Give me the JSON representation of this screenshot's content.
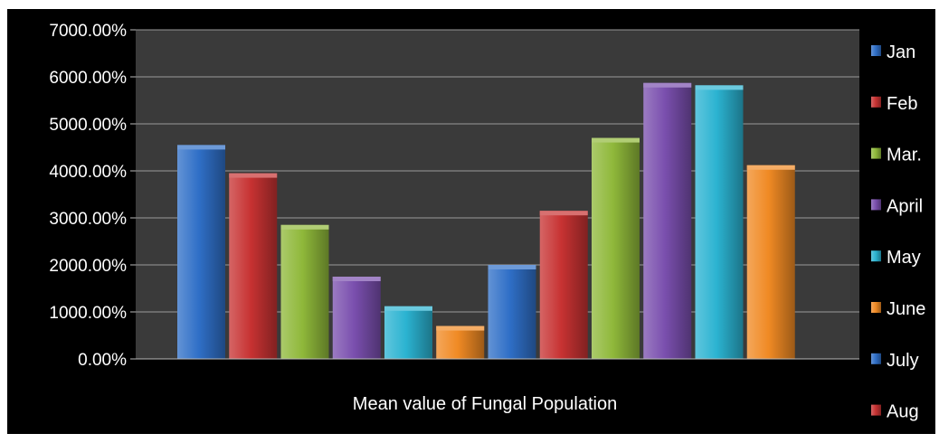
{
  "chart_data": {
    "type": "bar",
    "categories": [
      "Mean value of Fungal Population"
    ],
    "series": [
      {
        "name": "Jan",
        "values": [
          4550
        ],
        "color": "#2f6fc7"
      },
      {
        "name": "Feb",
        "values": [
          3950
        ],
        "color": "#c73232"
      },
      {
        "name": "Mar.",
        "values": [
          2850
        ],
        "color": "#8fb83a"
      },
      {
        "name": "April",
        "values": [
          1750
        ],
        "color": "#7a4fae"
      },
      {
        "name": "May",
        "values": [
          1120
        ],
        "color": "#2bb3d1"
      },
      {
        "name": "June",
        "values": [
          700
        ],
        "color": "#f08a24"
      },
      {
        "name": "July",
        "values": [
          2000
        ],
        "color": "#2f6fc7"
      },
      {
        "name": "Aug",
        "values": [
          3150
        ],
        "color": "#c73232"
      },
      {
        "name": "",
        "values": [
          4700
        ],
        "color": "#8fb83a"
      },
      {
        "name": "",
        "values": [
          5870
        ],
        "color": "#7a4fae"
      },
      {
        "name": "",
        "values": [
          5820
        ],
        "color": "#2bb3d1"
      },
      {
        "name": "",
        "values": [
          4120
        ],
        "color": "#f08a24"
      }
    ],
    "ylim": [
      0,
      7000
    ],
    "yticks": [
      "0.00%",
      "1000.00%",
      "2000.00%",
      "3000.00%",
      "4000.00%",
      "5000.00%",
      "6000.00%",
      "7000.00%"
    ],
    "xlabel": "Mean value of Fungal Population",
    "ylabel": "",
    "title": "",
    "grid": true,
    "legend": "right",
    "legend_entries": [
      "Jan",
      "Feb",
      "Mar.",
      "April",
      "May",
      "June",
      "July",
      "Aug"
    ],
    "background": "#000000",
    "plot_background": "#3a3a3a"
  }
}
